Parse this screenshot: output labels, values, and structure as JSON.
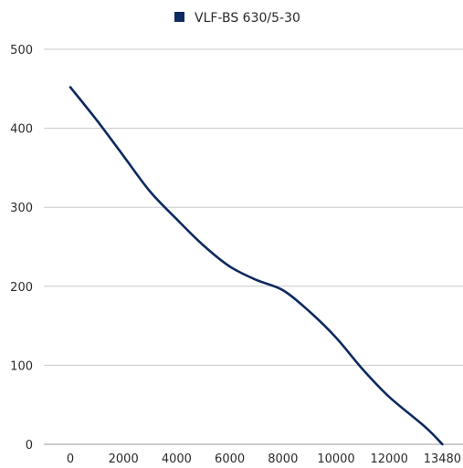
{
  "chart_data": {
    "type": "line",
    "title": "",
    "xlabel": "",
    "ylabel": "",
    "x_ticks": [
      "0",
      "2000",
      "4000",
      "6000",
      "8000",
      "10000",
      "12000",
      "13480"
    ],
    "y_ticks": [
      "0",
      "100",
      "200",
      "300",
      "400",
      "500"
    ],
    "ylim": [
      0,
      500
    ],
    "grid": "horizontal",
    "legend": "top-center",
    "series": [
      {
        "name": "VLF-BS 630/5-30",
        "color": "#0e2a5f",
        "x": [
          0,
          1000,
          2000,
          3000,
          4000,
          5000,
          6000,
          7000,
          8000,
          9000,
          10000,
          11000,
          12000,
          13000,
          13480
        ],
        "y": [
          452,
          410,
          365,
          320,
          285,
          252,
          225,
          208,
          195,
          168,
          135,
          95,
          60,
          22,
          0
        ]
      }
    ]
  }
}
